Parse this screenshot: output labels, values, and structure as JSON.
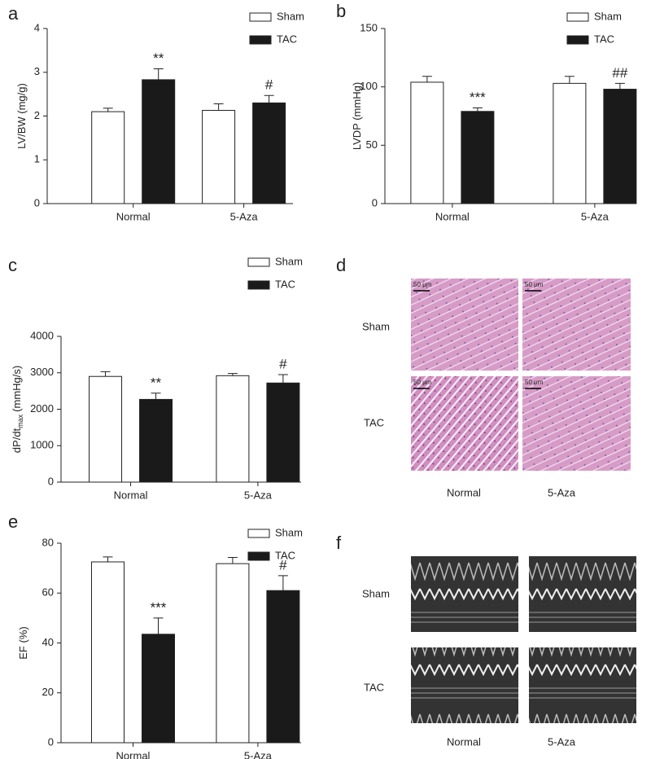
{
  "chart_data": [
    {
      "type": "bar",
      "panel": "a",
      "ylabel": "LV/BW (mg/g)",
      "categories": [
        "Normal",
        "5-Aza"
      ],
      "series": [
        {
          "name": "Sham",
          "color": "#ffffff",
          "values": [
            2.1,
            2.13
          ],
          "errors": [
            0.08,
            0.15
          ],
          "annotations": [
            null,
            null
          ]
        },
        {
          "name": "TAC",
          "color": "#1a1a1a",
          "values": [
            2.83,
            2.3
          ],
          "errors": [
            0.25,
            0.17
          ],
          "annotations": [
            "**",
            "#"
          ]
        }
      ],
      "ylim": [
        0,
        4
      ],
      "yticks": [
        0,
        1,
        2,
        3,
        4
      ]
    },
    {
      "type": "bar",
      "panel": "b",
      "ylabel": "LVDP (mmHg)",
      "categories": [
        "Normal",
        "5-Aza"
      ],
      "series": [
        {
          "name": "Sham",
          "color": "#ffffff",
          "values": [
            104,
            103
          ],
          "errors": [
            5,
            6
          ],
          "annotations": [
            null,
            null
          ]
        },
        {
          "name": "TAC",
          "color": "#1a1a1a",
          "values": [
            79,
            98
          ],
          "errors": [
            3,
            5
          ],
          "annotations": [
            "***",
            "##"
          ]
        }
      ],
      "ylim": [
        0,
        150
      ],
      "yticks": [
        0,
        50,
        100,
        150
      ]
    },
    {
      "type": "bar",
      "panel": "c",
      "ylabel": "dP/dt",
      "ylabel_sub": "max",
      "ylabel_unit": "(mmHg/s)",
      "categories": [
        "Normal",
        "5-Aza"
      ],
      "series": [
        {
          "name": "Sham",
          "color": "#ffffff",
          "values": [
            2900,
            2920
          ],
          "errors": [
            130,
            60
          ],
          "annotations": [
            null,
            null
          ]
        },
        {
          "name": "TAC",
          "color": "#1a1a1a",
          "values": [
            2270,
            2720
          ],
          "errors": [
            170,
            230
          ],
          "annotations": [
            "**",
            "#"
          ]
        }
      ],
      "ylim": [
        0,
        4000
      ],
      "yticks": [
        0,
        1000,
        2000,
        3000,
        4000
      ]
    },
    {
      "type": "bar",
      "panel": "e",
      "ylabel": "EF (%)",
      "categories": [
        "Normal",
        "5-Aza"
      ],
      "series": [
        {
          "name": "Sham",
          "color": "#ffffff",
          "values": [
            72.5,
            71.8
          ],
          "errors": [
            2,
            2.5
          ],
          "annotations": [
            null,
            null
          ]
        },
        {
          "name": "TAC",
          "color": "#1a1a1a",
          "values": [
            43.5,
            61
          ],
          "errors": [
            6.5,
            6
          ],
          "annotations": [
            "***",
            "#"
          ]
        }
      ],
      "ylim": [
        0,
        80
      ],
      "yticks": [
        0,
        20,
        40,
        60,
        80
      ]
    }
  ],
  "image_panels": [
    {
      "panel": "d",
      "rows": [
        "Sham",
        "TAC"
      ],
      "columns": [
        "Normal",
        "5-Aza"
      ],
      "scale_bar": "50 μm"
    },
    {
      "panel": "f",
      "rows": [
        "Sham",
        "TAC"
      ],
      "columns": [
        "Normal",
        "5-Aza"
      ]
    }
  ]
}
